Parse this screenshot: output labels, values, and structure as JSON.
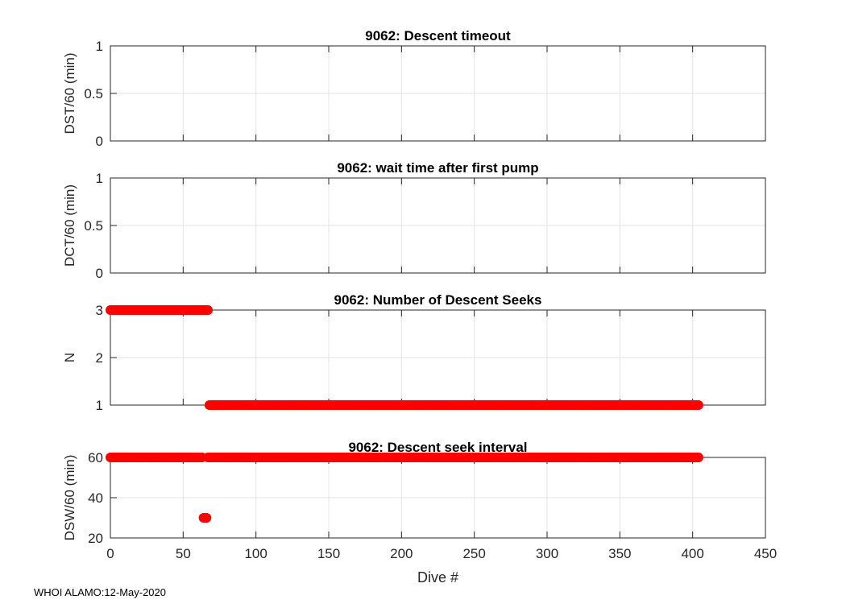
{
  "chart_data": [
    {
      "type": "scatter",
      "title": "9062: Descent timeout",
      "xlabel": "",
      "ylabel": "DST/60 (min)",
      "xlim": [
        0,
        450
      ],
      "ylim": [
        0,
        1
      ],
      "yticks": [
        "0",
        "0.5",
        "1"
      ],
      "yticks_values": [
        0,
        0.5,
        1
      ],
      "grid": true,
      "runs": []
    },
    {
      "type": "scatter",
      "title": "9062: wait time after first pump",
      "xlabel": "",
      "ylabel": "DCT/60 (min)",
      "xlim": [
        0,
        450
      ],
      "ylim": [
        0,
        1
      ],
      "yticks": [
        "0",
        "0.5",
        "1"
      ],
      "yticks_values": [
        0,
        0.5,
        1
      ],
      "grid": true,
      "runs": []
    },
    {
      "type": "scatter",
      "title": "9062: Number of Descent Seeks",
      "xlabel": "",
      "ylabel": "N",
      "xlim": [
        0,
        450
      ],
      "ylim": [
        1,
        3
      ],
      "yticks": [
        "1",
        "2",
        "3"
      ],
      "yticks_values": [
        1,
        2,
        3
      ],
      "grid": true,
      "series_color": "#ff0000",
      "runs": [
        {
          "x_start": 0,
          "x_end": 67,
          "y": 3
        },
        {
          "x_start": 68,
          "x_end": 404,
          "y": 1
        }
      ]
    },
    {
      "type": "scatter",
      "title": "9062: Descent seek interval",
      "xlabel": "Dive #",
      "ylabel": "DSW/60 (min)",
      "xlim": [
        0,
        450
      ],
      "ylim": [
        20,
        60
      ],
      "yticks": [
        "20",
        "40",
        "60"
      ],
      "yticks_values": [
        20,
        40,
        60
      ],
      "xticks": [
        "0",
        "50",
        "100",
        "150",
        "200",
        "250",
        "300",
        "350",
        "400",
        "450"
      ],
      "xticks_values": [
        0,
        50,
        100,
        150,
        200,
        250,
        300,
        350,
        400,
        450
      ],
      "grid": true,
      "series_color": "#ff0000",
      "runs": [
        {
          "x_start": 0,
          "x_end": 63,
          "y": 60
        },
        {
          "x_start": 64,
          "x_end": 66,
          "y": 30
        },
        {
          "x_start": 67,
          "x_end": 404,
          "y": 60
        }
      ]
    }
  ],
  "footer": "WHOI ALAMO:12-May-2020"
}
